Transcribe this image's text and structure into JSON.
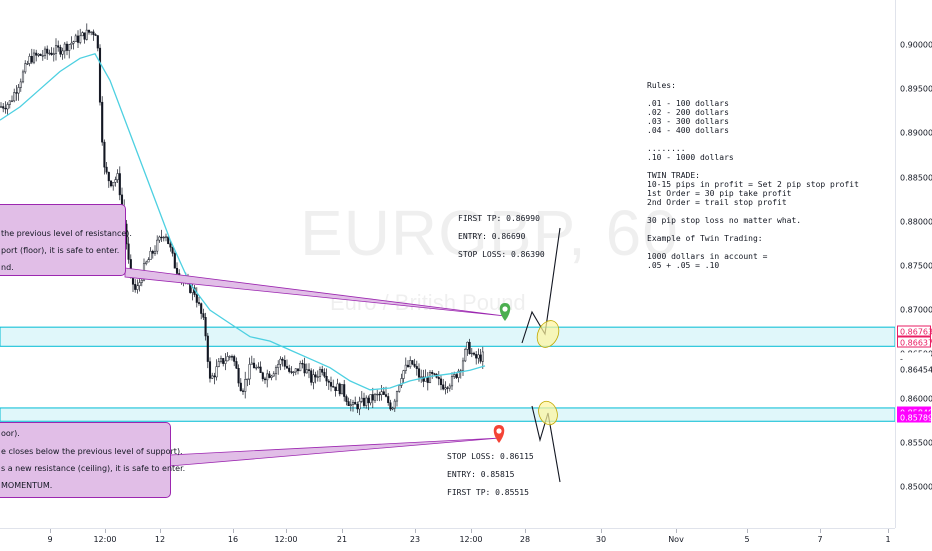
{
  "chart_data": {
    "type": "candlestick",
    "symbol_watermark": "EURGBP, 60",
    "symbol_subtitle": "Euro / British Pound",
    "y_axis": {
      "ylim": [
        0.8455,
        0.903
      ],
      "ticks": [
        "0.90000",
        "0.89500",
        "0.89000",
        "0.88500",
        "0.88000",
        "0.87500",
        "0.87000",
        "0.86500",
        "0.86000",
        "0.85500",
        "0.85000"
      ],
      "tick_values": [
        0.9,
        0.895,
        0.89,
        0.885,
        0.88,
        0.875,
        0.87,
        0.865,
        0.86,
        0.855,
        0.85
      ]
    },
    "x_axis": {
      "ticks": [
        "9",
        "12:00",
        "12",
        "16",
        "12:00",
        "21",
        "23",
        "12:00",
        "28",
        "30",
        "Nov",
        "5",
        "7",
        "1"
      ]
    },
    "price_tags": [
      {
        "label": "0.86763",
        "value": 0.86763,
        "bg": "#ffffff",
        "fg": "#e91e63",
        "border": "#e91e63"
      },
      {
        "label": "0.86637",
        "value": 0.86637,
        "bg": "#ffffff",
        "fg": "#e91e63",
        "border": "#e91e63"
      },
      {
        "label": "0.86454",
        "value": 0.86454,
        "bg": "#ffffff",
        "fg": "#131722",
        "border": "#ffffff"
      },
      {
        "label": "0.85849",
        "value": 0.85849,
        "bg": "#ff00ff",
        "fg": "#ffffff",
        "border": "#ff00ff"
      },
      {
        "label": "0.85789",
        "value": 0.85789,
        "bg": "#ff00ff",
        "fg": "#ffffff",
        "border": "#ff00ff"
      }
    ],
    "zones": [
      {
        "name": "resistance-zone",
        "top": 0.86763,
        "bottom": 0.86637,
        "color": "#00bcd4"
      },
      {
        "name": "support-zone",
        "top": 0.85849,
        "bottom": 0.85789,
        "color": "#00bcd4"
      }
    ],
    "annotations": {
      "buy_trade": {
        "first_tp": "FIRST TP: 0.86990",
        "entry": "ENTRY: 0.86690",
        "stop_loss": "STOP LOSS: 0.86390"
      },
      "sell_trade": {
        "stop_loss": "STOP LOSS: 0.86115",
        "entry": "ENTRY: 0.85815",
        "first_tp": "FIRST TP: 0.85515"
      },
      "buy_note": [
        "the previous level of resistance).",
        "port (floor), it is safe to enter.",
        "nd."
      ],
      "sell_note": [
        "oor).",
        "e closes below the previous level of support).",
        "s a new resistance (ceiling), it is safe to enter.",
        "MOMENTUM."
      ],
      "rules_text": "Rules:\n\n.01 - 100 dollars\n.02 - 200 dollars\n.03 - 300 dollars\n.04 - 400 dollars\n\n........\n.10 - 1000 dollars\n\nTWIN TRADE:\n10-15 pips in profit = Set 2 pip stop profit\n1st Order = 30 pip take profit\n2nd Order = trail stop profit\n\n30 pip stop loss no matter what.\n\nExample of Twin Trading:\n\n1000 dollars in account =\n.05 + .05 = .10"
    },
    "colors": {
      "up_candle": "#131722",
      "down_candle": "#131722",
      "moving_average": "#4dd0e1",
      "note_bg": "#e1bee7",
      "buy_marker": "#4caf50",
      "sell_marker": "#f44336",
      "highlight": "#fff59d"
    }
  }
}
